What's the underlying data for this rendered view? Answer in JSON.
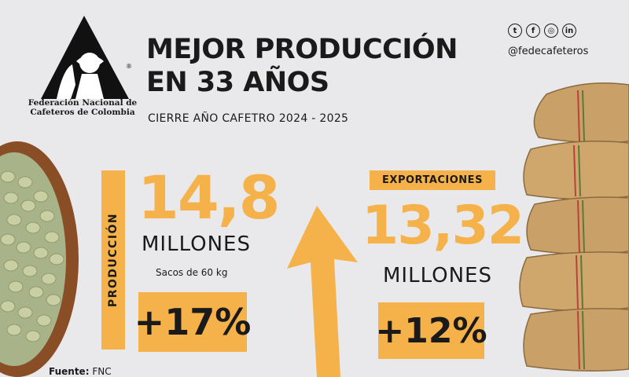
{
  "logo": {
    "org_line1": "Federación Nacional de",
    "org_line2": "Cafeteros de Colombia",
    "registered": "®"
  },
  "title": {
    "line1": "MEJOR PRODUCCIÓN",
    "line2": "EN 33 AÑOS"
  },
  "subtitle": "CIERRE AÑO CAFETRO 2024 - 2025",
  "social": {
    "icons": [
      "twitter-icon",
      "facebook-icon",
      "instagram-icon",
      "linkedin-icon"
    ],
    "glyphs": [
      "t",
      "f",
      "◎",
      "in"
    ],
    "handle": "@fedecafeteros"
  },
  "production": {
    "label": "PRODUCCIÓN",
    "value": "14,8",
    "unit": "MILLONES",
    "sub": "Sacos de 60 kg",
    "change": "+17%"
  },
  "exports": {
    "label": "EXPORTACIONES",
    "value": "13,32",
    "unit": "MILLONES",
    "change": "+12%"
  },
  "source": {
    "label": "Fuente:",
    "value": "FNC"
  },
  "colors": {
    "accent": "#f6b24a",
    "background": "#e9e8ea",
    "bowl": "#8a4e27",
    "beans": "#c9cfa3",
    "sack": "#c9a067"
  }
}
